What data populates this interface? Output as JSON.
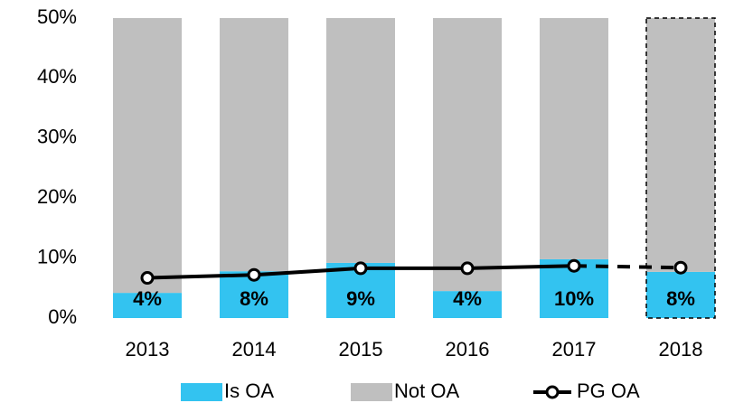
{
  "chart_data": {
    "type": "bar",
    "categories": [
      "2013",
      "2014",
      "2015",
      "2016",
      "2017",
      "2018"
    ],
    "series": [
      {
        "name": "Is OA",
        "color": "#33c3f0",
        "values": [
          4.2,
          7.8,
          9.2,
          4.5,
          9.8,
          7.7
        ],
        "value_labels": [
          "4%",
          "8%",
          "9%",
          "4%",
          "10%",
          "8%"
        ]
      },
      {
        "name": "Not OA",
        "color": "#bfbfbf",
        "values": [
          45.8,
          42.2,
          40.8,
          45.5,
          40.2,
          42.3
        ]
      },
      {
        "name": "PG OA",
        "type": "line",
        "color": "#000000",
        "values": [
          6.7,
          7.2,
          8.3,
          8.3,
          8.7,
          8.4
        ]
      }
    ],
    "stacked": true,
    "dashed_last_segment": true,
    "ylim": [
      0,
      50
    ],
    "yticks": [
      {
        "value": 0,
        "label": "0%"
      },
      {
        "value": 10,
        "label": "10%"
      },
      {
        "value": 20,
        "label": "20%"
      },
      {
        "value": 30,
        "label": "30%"
      },
      {
        "value": 40,
        "label": "40%"
      },
      {
        "value": 50,
        "label": "50%"
      }
    ]
  }
}
